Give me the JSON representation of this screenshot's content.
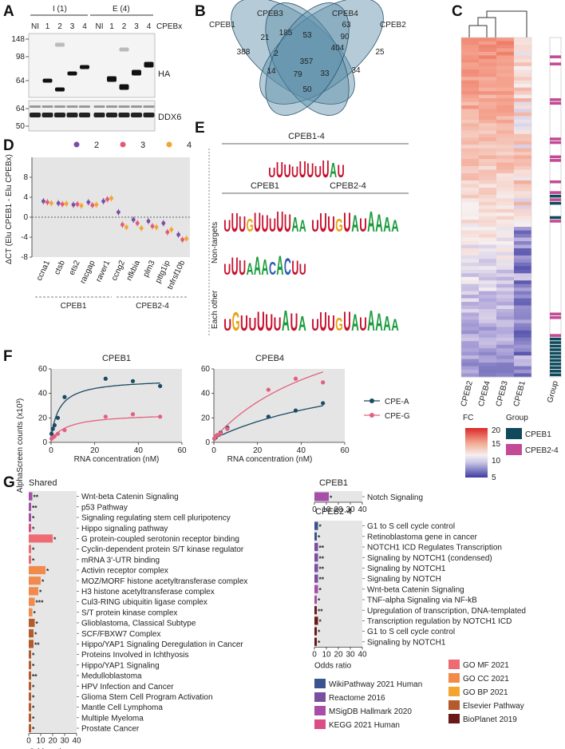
{
  "panels": {
    "a": {
      "letter": "A",
      "lanes_i_label": "I (1)",
      "lanes_e_label": "E (4)",
      "lanes": [
        "NI",
        "1",
        "2",
        "3",
        "4",
        "NI",
        "1",
        "2",
        "3",
        "4"
      ],
      "cpebx": "CPEBx",
      "mw_top": [
        "148",
        "98",
        "64"
      ],
      "mw_bottom": [
        "64",
        "50"
      ],
      "blot_top_label": "HA",
      "blot_bottom_label": "DDX6"
    },
    "b": {
      "letter": "B",
      "set_labels": [
        "CPEB1",
        "CPEB3",
        "CPEB4",
        "CPEB2"
      ],
      "counts": [
        "388",
        "185",
        "63",
        "25",
        "21",
        "53",
        "90",
        "2",
        "404",
        "357",
        "14",
        "79",
        "33",
        "34",
        "50"
      ]
    },
    "c": {
      "letter": "C",
      "columns": [
        "CPEB2",
        "CPEB4",
        "CPEB3",
        "CPEB1"
      ],
      "group_col": "Group",
      "fc_title": "FC",
      "fc_ticks": [
        "20",
        "15",
        "10",
        "5"
      ],
      "group_title": "Group",
      "group_items": [
        {
          "label": "CPEB1",
          "color": "#0e4a5c"
        },
        {
          "label": "CPEB2-4",
          "color": "#c34b95"
        }
      ]
    },
    "d": {
      "letter": "D",
      "legend": [
        {
          "label": "2",
          "color": "#7b4ea3"
        },
        {
          "label": "3",
          "color": "#e35a76"
        },
        {
          "label": "4",
          "color": "#f4a531"
        }
      ],
      "ylabel": "ΔCT (Elu CPEB1 - Elu CPEBx)",
      "yticks": [
        "8",
        "4",
        "0",
        "-4",
        "-8"
      ],
      "genes": [
        "ccna1",
        "ctsb",
        "ets2",
        "racgap",
        "raver1",
        "ccng2",
        "nfkbia",
        "plm3",
        "pttg1ip",
        "tnfrsf10b"
      ],
      "groups": [
        "CPEB1",
        "CPEB2-4"
      ],
      "values": {
        "2": [
          3.2,
          2.8,
          2.5,
          3.0,
          3.2,
          1.0,
          -0.5,
          -0.8,
          -1.2,
          -3.5
        ],
        "3": [
          3.0,
          2.6,
          2.6,
          2.4,
          3.6,
          -1.5,
          -1.2,
          -1.8,
          -3.0,
          -4.5
        ],
        "4": [
          2.8,
          2.7,
          2.3,
          2.5,
          3.8,
          -2.0,
          -2.2,
          -2.0,
          -2.5,
          -4.3
        ]
      }
    },
    "e": {
      "letter": "E",
      "top_title": "CPEB1-4",
      "col1": "CPEB1",
      "col2": "CPEB2-4",
      "row1": "Non-targets",
      "row2": "Each other",
      "motifs": {
        "cpeb14": "UUUUUUUUAU",
        "cpeb1_nt_a": "UUUGUUUUUAA",
        "cpeb1_nt_b": "UUUAAACACUU",
        "cpeb24_nt": "UUUGUAUAAAA",
        "cpeb1_eo": "UGUUUUUAUA",
        "cpeb24_eo": "UUUGUAUAAAA"
      }
    },
    "f": {
      "letter": "F",
      "titles": [
        "CPEB1",
        "CPEB4"
      ],
      "ylabel": "AlphaScreen counts (x10³)",
      "xlabel": "RNA concentration (nM)",
      "legend": [
        {
          "label": "CPE-A",
          "color": "#1a4b62"
        },
        {
          "label": "CPE-G",
          "color": "#e36080"
        }
      ]
    },
    "g": {
      "letter": "G",
      "shared_title": "Shared",
      "cpeb1_title": "CPEB1",
      "cpeb24_title": "CPEB2-4",
      "xlabel": "Odds ratio",
      "xticks": [
        "0",
        "10",
        "20",
        "30",
        "40"
      ],
      "shared_terms": [
        {
          "term": "Wnt-beta Catenin Signaling",
          "stars": "**"
        },
        {
          "term": "p53 Pathway",
          "stars": "**"
        },
        {
          "term": "Signaling regulating stem cell pluripotency",
          "stars": "*"
        },
        {
          "term": "Hippo signaling pathway",
          "stars": "*"
        },
        {
          "term": "G protein-coupled serotonin receptor binding",
          "stars": "*"
        },
        {
          "term": "Cyclin-dependent protein S/T kinase regulator",
          "stars": "*"
        },
        {
          "term": "mRNA 3'-UTR binding",
          "stars": "*"
        },
        {
          "term": "Activin receptor complex",
          "stars": "*"
        },
        {
          "term": "MOZ/MORF histone acetyltransferase complex",
          "stars": "*"
        },
        {
          "term": "H3 histone acetyltransferase complex",
          "stars": "*"
        },
        {
          "term": "Cul3-RING ubiquitin ligase complex",
          "stars": "***"
        },
        {
          "term": "S/T protein kinase complex",
          "stars": "*"
        },
        {
          "term": "Glioblastoma, Classical Subtype",
          "stars": "*"
        },
        {
          "term": "SCF/FBXW7 Complex",
          "stars": "*"
        },
        {
          "term": "Hippo/YAP1 Signaling Deregulation in Cancer",
          "stars": "**"
        },
        {
          "term": "Proteins Involved in Ichthyosis",
          "stars": "*"
        },
        {
          "term": "Hippo/YAP1 Signaling",
          "stars": "*"
        },
        {
          "term": "Medulloblastoma",
          "stars": "**"
        },
        {
          "term": "HPV Infection and Cancer",
          "stars": "*"
        },
        {
          "term": "Glioma Stem Cell Program Activation",
          "stars": "*"
        },
        {
          "term": "Mantle Cell Lymphoma",
          "stars": "*"
        },
        {
          "term": "Multiple Myeloma",
          "stars": "*"
        },
        {
          "term": "Prostate Cancer",
          "stars": "*"
        }
      ],
      "cpeb1_terms": [
        {
          "term": "Notch Signaling",
          "stars": "*"
        }
      ],
      "cpeb24_terms": [
        {
          "term": "G1 to S cell cycle control",
          "stars": "*"
        },
        {
          "term": "Retinoblastoma gene in cancer",
          "stars": "*"
        },
        {
          "term": "NOTCH1 ICD Regulates Transcription",
          "stars": "**"
        },
        {
          "term": "Signaling by NOTCH1 (condensed)",
          "stars": "**"
        },
        {
          "term": "Signaling by NOTCH1",
          "stars": "**"
        },
        {
          "term": "Signaling by NOTCH",
          "stars": "**"
        },
        {
          "term": "Wnt-beta Catenin Signaling",
          "stars": "*"
        },
        {
          "term": "TNF-alpha Signaling via NF-kB",
          "stars": "*"
        },
        {
          "term": "Upregulation of transcription, DNA-templated",
          "stars": "**"
        },
        {
          "term": "Transcription regulation by NOTCH1 ICD",
          "stars": "*"
        },
        {
          "term": "G1 to S cell cycle control",
          "stars": "*"
        },
        {
          "term": "Signaling by NOTCH1",
          "stars": "*"
        }
      ],
      "legend": [
        {
          "label": "WikiPathway 2021 Human",
          "color": "#3b5491"
        },
        {
          "label": "Reactome 2016",
          "color": "#7a4fa0"
        },
        {
          "label": "MSigDB Hallmark 2020",
          "color": "#a64fa8"
        },
        {
          "label": "KEGG 2021 Human",
          "color": "#d94e86"
        },
        {
          "label": "GO MF 2021",
          "color": "#ef6b73"
        },
        {
          "label": "GO CC 2021",
          "color": "#f28a4b"
        },
        {
          "label": "GO BP 2021",
          "color": "#f4a531"
        },
        {
          "label": "Elsevier Pathway",
          "color": "#b55a2a"
        },
        {
          "label": "BioPlanet 2019",
          "color": "#6b1818"
        }
      ]
    }
  },
  "chart_data": [
    {
      "type": "scatter",
      "title": "CPEB1",
      "xlabel": "RNA concentration (nM)",
      "ylabel": "AlphaScreen counts (x10³)",
      "xlim": [
        0,
        60
      ],
      "ylim": [
        0,
        60
      ],
      "series": [
        {
          "name": "CPE-A",
          "x": [
            0.2,
            0.8,
            1.6,
            3.1,
            6.2,
            25,
            37.5,
            50
          ],
          "y": [
            7,
            11,
            14,
            20,
            37,
            52,
            50,
            46
          ]
        },
        {
          "name": "CPE-G",
          "x": [
            0.2,
            0.8,
            1.6,
            3.1,
            6.2,
            25,
            37.5,
            50
          ],
          "y": [
            3,
            4,
            5,
            7,
            10,
            21,
            23,
            21
          ]
        }
      ]
    },
    {
      "type": "scatter",
      "title": "CPEB4",
      "xlabel": "RNA concentration (nM)",
      "ylabel": "AlphaScreen counts (x10³)",
      "xlim": [
        0,
        60
      ],
      "ylim": [
        0,
        60
      ],
      "series": [
        {
          "name": "CPE-A",
          "x": [
            0.2,
            0.8,
            1.6,
            3.1,
            6.2,
            25,
            37.5,
            50
          ],
          "y": [
            3,
            4,
            6,
            8,
            12,
            21,
            26,
            32
          ]
        },
        {
          "name": "CPE-G",
          "x": [
            0.2,
            0.8,
            1.6,
            3.1,
            6.2,
            25,
            37.5,
            50
          ],
          "y": [
            3,
            5,
            6,
            7,
            11,
            43,
            52,
            49
          ]
        }
      ]
    }
  ]
}
